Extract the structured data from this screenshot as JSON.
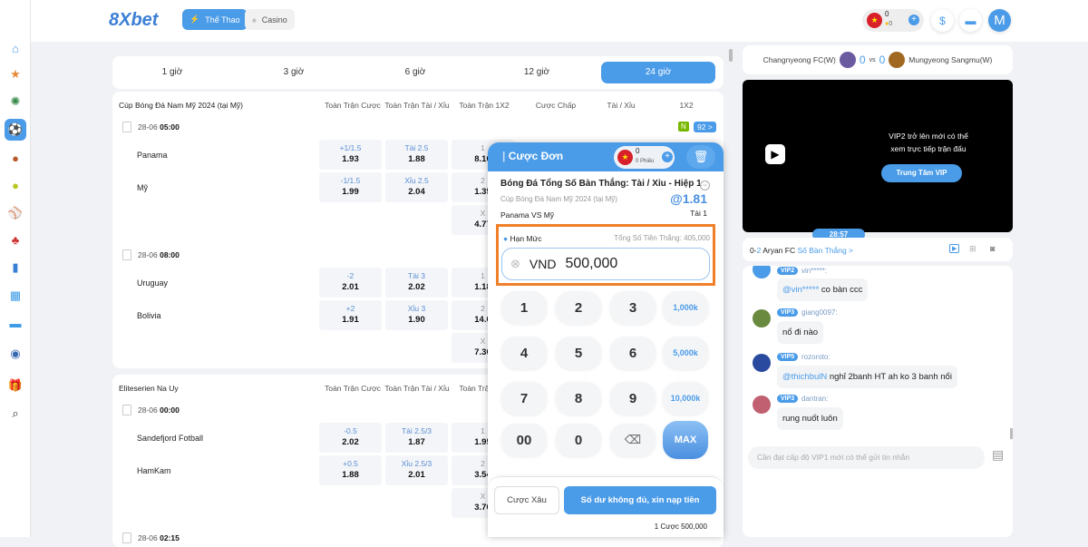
{
  "header": {
    "logo": "8Xbet",
    "nav": [
      {
        "label": "Thể Thao",
        "icon": "lightning-icon",
        "active": true
      },
      {
        "label": "Casino",
        "icon": "spade-icon",
        "active": false
      }
    ],
    "wallet": {
      "balance": "0",
      "coins": "0"
    },
    "avatar_letter": "M"
  },
  "sidebar": {
    "items": [
      "home",
      "favorites",
      "euro",
      "football",
      "basketball",
      "tennis",
      "baseball",
      "cards",
      "stats",
      "scoreboard",
      "results",
      "club",
      "gift",
      "search"
    ],
    "active": "football"
  },
  "time_tabs": [
    "1 giờ",
    "3 giờ",
    "6 giờ",
    "12 giờ",
    "24 giờ"
  ],
  "active_tab": "24 giờ",
  "columns": [
    "Toàn Trận Cược",
    "Toàn Trận Tài / Xỉu",
    "Toàn Trận 1X2",
    "Cược Chấp",
    "Tài / Xỉu",
    "1X2"
  ],
  "leagues": [
    {
      "name": "Cúp Bóng Đá Nam Mỹ 2024 (tại Mỹ)",
      "badge_n": "N",
      "badge_count": "92 >",
      "matches": [
        {
          "date": "28-06",
          "time": "05:00",
          "home": "Panama",
          "away": "Mỹ",
          "hdp": [
            {
              "l": "+1/1.5",
              "v": "1.93"
            },
            {
              "l": "-1/1.5",
              "v": "1.99"
            }
          ],
          "ou": [
            {
              "l": "Tài 2.5",
              "v": "1.88"
            },
            {
              "l": "Xỉu 2.5",
              "v": "2.04"
            }
          ],
          "x12": [
            {
              "l": "1",
              "v": "8.10"
            },
            {
              "l": "2",
              "v": "1.35"
            },
            {
              "l": "X",
              "v": "4.77"
            }
          ]
        },
        {
          "date": "28-06",
          "time": "08:00",
          "home": "Uruguay",
          "away": "Bolivia",
          "hdp": [
            {
              "l": "-2",
              "v": "2.01"
            },
            {
              "l": "+2",
              "v": "1.91"
            }
          ],
          "ou": [
            {
              "l": "Tài 3",
              "v": "2.02"
            },
            {
              "l": "Xỉu 3",
              "v": "1.90"
            }
          ],
          "x12": [
            {
              "l": "1",
              "v": "1.18"
            },
            {
              "l": "2",
              "v": "14.0"
            },
            {
              "l": "X",
              "v": "7.30"
            }
          ]
        }
      ]
    },
    {
      "name": "Eliteserien Na Uy",
      "matches": [
        {
          "date": "28-06",
          "time": "00:00",
          "home": "Sandefjord Fotball",
          "away": "HamKam",
          "hdp": [
            {
              "l": "-0.5",
              "v": "2.02"
            },
            {
              "l": "+0.5",
              "v": "1.88"
            }
          ],
          "ou": [
            {
              "l": "Tài 2.5/3",
              "v": "1.87"
            },
            {
              "l": "Xỉu 2.5/3",
              "v": "2.01"
            }
          ],
          "x12": [
            {
              "l": "1",
              "v": "1.95"
            },
            {
              "l": "2",
              "v": "3.54"
            },
            {
              "l": "X",
              "v": "3.70"
            }
          ]
        },
        {
          "date": "28-06",
          "time": "02:15"
        }
      ]
    }
  ],
  "slip": {
    "title": "Cược Đơn",
    "balance": "0",
    "tickets": "0 Phiếu",
    "market": "Bóng Đá Tổng Số Bàn Thắng: Tài / Xỉu - Hiệp 1",
    "league": "Cúp Bóng Đá Nam Mỹ 2024 (tại Mỹ)",
    "odds": "@1.81",
    "matchup": "Panama VS Mỹ",
    "selection": "Tài 1",
    "limit_label": "Hạn Mức",
    "win_label": "Tổng Số Tiền Thắng: 405,000",
    "currency": "VND",
    "amount": "500,000",
    "keys": [
      "1",
      "2",
      "3",
      "1,000k",
      "4",
      "5",
      "6",
      "5,000k",
      "7",
      "8",
      "9",
      "10,000k",
      "00",
      "0",
      "backspace",
      "MAX"
    ],
    "parlay_button": "Cược Xâu",
    "deposit_button": "Số dư không đủ, xin nạp tiền",
    "summary": "1 Cược 500,000",
    "accent": "#4a9be8",
    "highlight": "#f07f2a"
  },
  "live": {
    "home": "Changnyeong FC(W)",
    "away": "Mungyeong Sangmu(W)",
    "home_score": "0",
    "vs": "vs",
    "away_score": "0",
    "vip_msg_1": "VIP2 trở lên mới có thể",
    "vip_msg_2": "xem trực tiếp trận đấu",
    "vip_button": "Trung Tâm VIP",
    "clock": "28:57",
    "score_line_prefix": "0-",
    "score_line_num": "2",
    "score_line_team": "Aryan FC",
    "score_link": "Số Bàn Thắng >"
  },
  "chat": {
    "messages": [
      {
        "vip": "VIP2",
        "user": "vin*****:",
        "mention": "@vin*****",
        "text": "co bàn ccc"
      },
      {
        "vip": "VIP3",
        "user": "giang0097:",
        "mention": "",
        "text": "nổ đi nào"
      },
      {
        "vip": "VIP5",
        "user": "rozoroto:",
        "mention": "@thichbulN",
        "text": "nghỉ 2banh HT ah ko 3 banh nổi"
      },
      {
        "vip": "VIP3",
        "user": "dantran:",
        "mention": "",
        "text": "rung nuốt luôn"
      }
    ],
    "placeholder": "Cần đạt cấp độ VIP1 mới có thể gửi tin nhắn"
  }
}
